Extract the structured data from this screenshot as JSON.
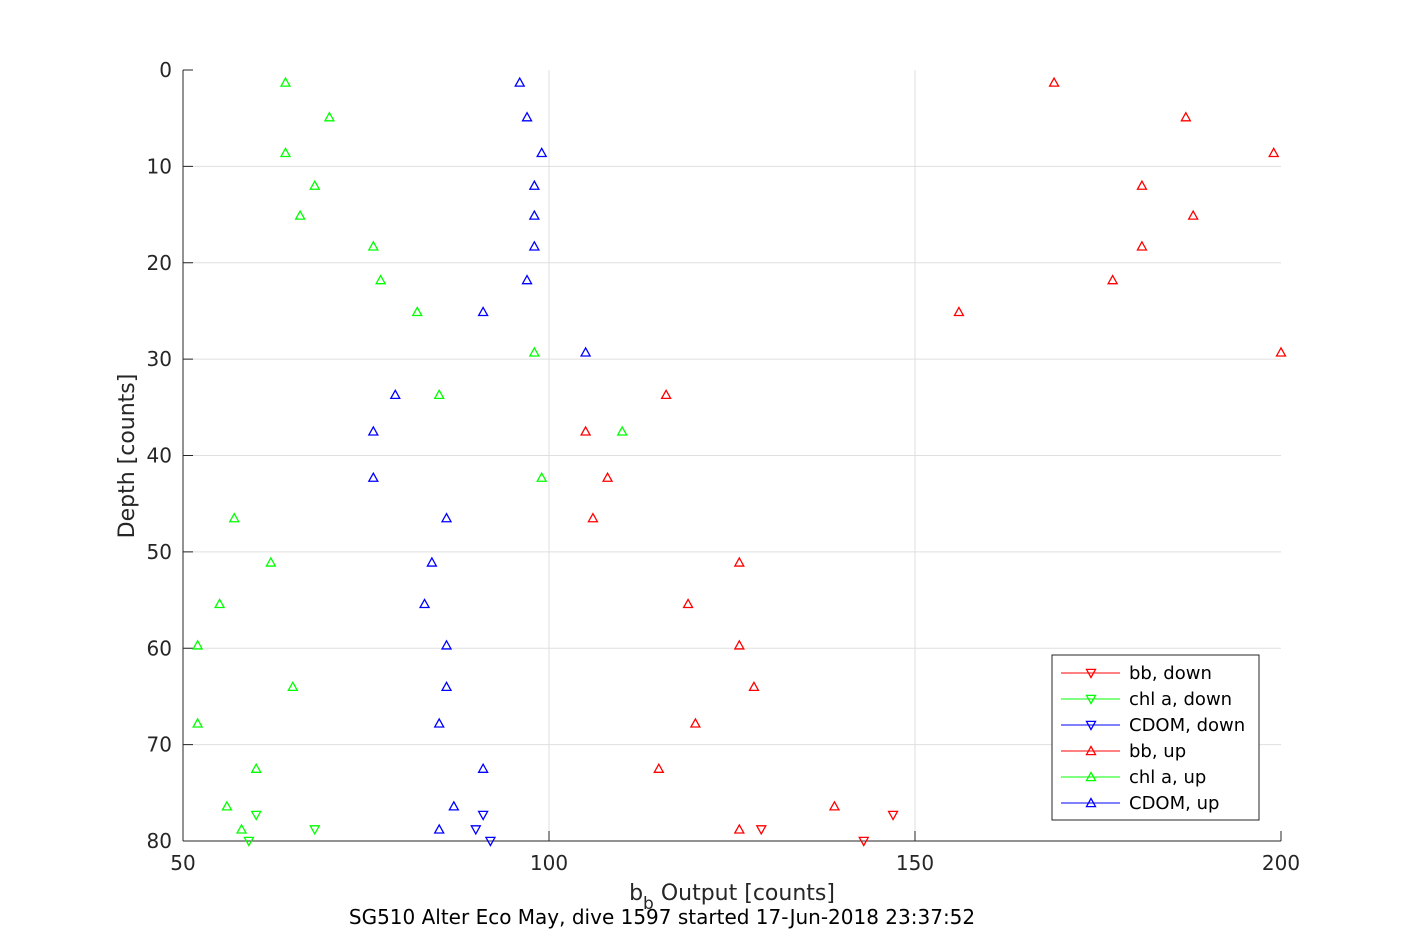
{
  "chart_data": {
    "type": "scatter",
    "xlabel_base": "b",
    "xlabel_sub": "b",
    "xlabel_rest": " Output [counts]",
    "ylabel": "Depth [counts]",
    "caption": "SG510 Alter Eco May, dive 1597 started 17-Jun-2018 23:37:52",
    "xlim": [
      50,
      200
    ],
    "ylim": [
      0,
      80
    ],
    "y_reversed": true,
    "grid": true,
    "x_ticks": [
      50,
      100,
      150,
      200
    ],
    "y_ticks": [
      0,
      10,
      20,
      30,
      40,
      50,
      60,
      70,
      80
    ],
    "legend_position": "bottom-right",
    "series": [
      {
        "name": "bb, down",
        "color": "#ff0000",
        "marker": "triangle-down",
        "points": [
          [
            147,
            77.3
          ],
          [
            129,
            78.8
          ],
          [
            143,
            80
          ]
        ]
      },
      {
        "name": "chl a, down",
        "color": "#00ff00",
        "marker": "triangle-down",
        "points": [
          [
            60,
            77.3
          ],
          [
            68,
            78.8
          ],
          [
            59,
            80
          ]
        ]
      },
      {
        "name": "CDOM, down",
        "color": "#0000ff",
        "marker": "triangle-down",
        "points": [
          [
            91,
            77.3
          ],
          [
            90,
            78.8
          ],
          [
            92,
            80
          ]
        ]
      },
      {
        "name": "bb, up",
        "color": "#ff0000",
        "marker": "triangle-up",
        "points": [
          [
            169,
            1.3
          ],
          [
            187,
            4.9
          ],
          [
            199,
            8.6
          ],
          [
            181,
            12
          ],
          [
            188,
            15.1
          ],
          [
            181,
            18.3
          ],
          [
            177,
            21.8
          ],
          [
            156,
            25.1
          ],
          [
            200,
            29.3
          ],
          [
            116,
            33.7
          ],
          [
            105,
            37.5
          ],
          [
            108,
            42.3
          ],
          [
            106,
            46.5
          ],
          [
            126,
            51.1
          ],
          [
            119,
            55.4
          ],
          [
            126,
            59.7
          ],
          [
            128,
            64
          ],
          [
            120,
            67.8
          ],
          [
            115,
            72.5
          ],
          [
            139,
            76.4
          ],
          [
            126,
            78.8
          ]
        ]
      },
      {
        "name": "chl a, up",
        "color": "#00ff00",
        "marker": "triangle-up",
        "points": [
          [
            64,
            1.3
          ],
          [
            70,
            4.9
          ],
          [
            64,
            8.6
          ],
          [
            68,
            12
          ],
          [
            66,
            15.1
          ],
          [
            76,
            18.3
          ],
          [
            77,
            21.8
          ],
          [
            82,
            25.1
          ],
          [
            98,
            29.3
          ],
          [
            85,
            33.7
          ],
          [
            110,
            37.5
          ],
          [
            99,
            42.3
          ],
          [
            57,
            46.5
          ],
          [
            62,
            51.1
          ],
          [
            55,
            55.4
          ],
          [
            52,
            59.7
          ],
          [
            65,
            64
          ],
          [
            52,
            67.8
          ],
          [
            60,
            72.5
          ],
          [
            56,
            76.4
          ],
          [
            58,
            78.8
          ]
        ]
      },
      {
        "name": "CDOM, up",
        "color": "#0000ff",
        "marker": "triangle-up",
        "points": [
          [
            96,
            1.3
          ],
          [
            97,
            4.9
          ],
          [
            99,
            8.6
          ],
          [
            98,
            12
          ],
          [
            98,
            15.1
          ],
          [
            98,
            18.3
          ],
          [
            97,
            21.8
          ],
          [
            91,
            25.1
          ],
          [
            105,
            29.3
          ],
          [
            79,
            33.7
          ],
          [
            76,
            37.5
          ],
          [
            76,
            42.3
          ],
          [
            86,
            46.5
          ],
          [
            84,
            51.1
          ],
          [
            83,
            55.4
          ],
          [
            86,
            59.7
          ],
          [
            86,
            64
          ],
          [
            85,
            67.8
          ],
          [
            91,
            72.5
          ],
          [
            87,
            76.4
          ],
          [
            85,
            78.8
          ]
        ]
      }
    ]
  }
}
